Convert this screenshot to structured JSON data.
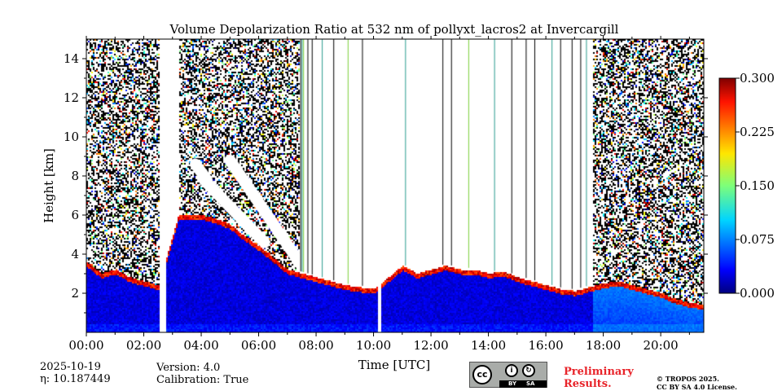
{
  "chart_data": {
    "type": "heatmap",
    "title": "Volume Depolarization Ratio at 532 nm of pollyxt_lacros2 at Invercargill",
    "xlabel": "Time [UTC]",
    "ylabel": "Height [km]",
    "x_range_hours": [
      0,
      21.5
    ],
    "ylim": [
      0,
      15
    ],
    "x_ticks": [
      {
        "value": 0,
        "label": "00:00"
      },
      {
        "value": 2,
        "label": "02:00"
      },
      {
        "value": 4,
        "label": "04:00"
      },
      {
        "value": 6,
        "label": "06:00"
      },
      {
        "value": 8,
        "label": "08:00"
      },
      {
        "value": 10,
        "label": "10:00"
      },
      {
        "value": 12,
        "label": "12:00"
      },
      {
        "value": 14,
        "label": "14:00"
      },
      {
        "value": 16,
        "label": "16:00"
      },
      {
        "value": 18,
        "label": "18:00"
      },
      {
        "value": 20,
        "label": "20:00"
      }
    ],
    "y_ticks": [
      {
        "value": 2,
        "label": "2"
      },
      {
        "value": 4,
        "label": "4"
      },
      {
        "value": 6,
        "label": "6"
      },
      {
        "value": 8,
        "label": "8"
      },
      {
        "value": 10,
        "label": "10"
      },
      {
        "value": 12,
        "label": "12"
      },
      {
        "value": 14,
        "label": "14"
      }
    ],
    "colorbar": {
      "colormap": "jet",
      "range": [
        0.0,
        0.3
      ],
      "ticks": [
        {
          "value": 0.0,
          "label": "0.000"
        },
        {
          "value": 0.075,
          "label": "0.075"
        },
        {
          "value": 0.15,
          "label": "0.150"
        },
        {
          "value": 0.225,
          "label": "0.225"
        },
        {
          "value": 0.3,
          "label": "0.300"
        }
      ]
    },
    "noise_periods_hours": [
      [
        0.0,
        2.6
      ],
      [
        3.2,
        7.4
      ],
      [
        17.6,
        21.5
      ]
    ],
    "data_gaps_hours": [
      [
        2.55,
        2.75
      ],
      [
        10.1,
        10.25
      ]
    ],
    "cloud_base_km": [
      [
        0.0,
        3.4
      ],
      [
        0.5,
        2.8
      ],
      [
        1.0,
        3.0
      ],
      [
        1.5,
        2.6
      ],
      [
        2.0,
        2.4
      ],
      [
        2.5,
        2.2
      ],
      [
        3.2,
        5.8
      ],
      [
        4.0,
        5.8
      ],
      [
        4.5,
        5.6
      ],
      [
        5.0,
        5.3
      ],
      [
        5.5,
        4.7
      ],
      [
        6.0,
        4.2
      ],
      [
        6.5,
        3.6
      ],
      [
        7.0,
        3.0
      ],
      [
        7.5,
        2.8
      ],
      [
        8.0,
        2.6
      ],
      [
        8.5,
        2.4
      ],
      [
        9.0,
        2.2
      ],
      [
        9.5,
        2.1
      ],
      [
        10.0,
        2.0
      ],
      [
        10.5,
        2.6
      ],
      [
        11.0,
        3.2
      ],
      [
        11.5,
        2.8
      ],
      [
        12.0,
        3.0
      ],
      [
        12.5,
        3.2
      ],
      [
        13.0,
        3.0
      ],
      [
        13.5,
        3.0
      ],
      [
        14.0,
        2.8
      ],
      [
        14.5,
        2.9
      ],
      [
        15.0,
        2.6
      ],
      [
        15.5,
        2.4
      ],
      [
        16.0,
        2.2
      ],
      [
        16.5,
        2.0
      ],
      [
        17.0,
        1.9
      ],
      [
        17.5,
        2.1
      ],
      [
        18.0,
        2.3
      ],
      [
        18.5,
        2.4
      ],
      [
        19.0,
        2.2
      ],
      [
        19.5,
        2.0
      ],
      [
        20.0,
        1.8
      ],
      [
        20.5,
        1.5
      ],
      [
        21.0,
        1.3
      ],
      [
        21.5,
        1.2
      ]
    ],
    "high_depol_plumes_km": [
      {
        "start_h": 4.1,
        "end_h": 6.2,
        "from_km": 7.8,
        "to_km": 4.6
      },
      {
        "start_h": 5.0,
        "end_h": 7.5,
        "from_km": 8.8,
        "to_km": 3.4
      },
      {
        "start_h": 3.8,
        "end_h": 4.2,
        "from_km": 8.6,
        "to_km": 7.8
      }
    ],
    "rain_lines_hours": [
      7.45,
      7.5,
      7.55,
      7.7,
      7.85,
      8.2,
      8.6,
      9.1,
      9.6,
      11.1,
      12.4,
      12.7,
      13.3,
      14.2,
      14.8,
      15.3,
      15.6,
      16.2,
      16.5,
      16.9,
      17.2,
      17.4
    ]
  },
  "footer": {
    "date": "2025-10-19",
    "eta_label": "η: 10.187449",
    "version": "Version: 4.0",
    "calibration": "Calibration: True",
    "license_badge": {
      "cc": "cc",
      "by": "BY",
      "sa": "SA"
    },
    "preliminary_line1": "Preliminary",
    "preliminary_line2": "Results.",
    "copyright_line1": "© TROPOS 2025.",
    "copyright_line2": "CC BY SA 4.0 License."
  }
}
